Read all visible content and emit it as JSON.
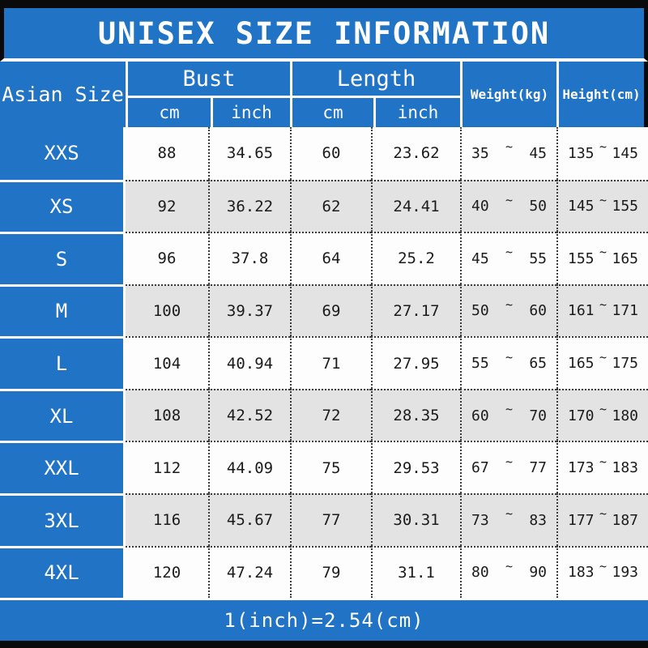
{
  "title": "UNISEX SIZE INFORMATION",
  "footer_note": "1(inch)=2.54(cm)",
  "tilde": "~",
  "colors": {
    "accent_blue": "#2173c5",
    "row_alt_gray": "#e3e3e3",
    "row_white": "#fdfdfd",
    "frame_black": "#0a0a0a"
  },
  "columns": {
    "size": "Asian Size",
    "bust": "Bust",
    "length": "Length",
    "weight": "Weight(kg)",
    "height": "Height(cm)",
    "cm": "cm",
    "inch": "inch"
  },
  "rows": [
    {
      "size": "XXS",
      "bust_cm": "88",
      "bust_in": "34.65",
      "length_cm": "60",
      "length_in": "23.62",
      "weight_min": "35",
      "weight_max": "45",
      "height_min": "135",
      "height_max": "145"
    },
    {
      "size": "XS",
      "bust_cm": "92",
      "bust_in": "36.22",
      "length_cm": "62",
      "length_in": "24.41",
      "weight_min": "40",
      "weight_max": "50",
      "height_min": "145",
      "height_max": "155"
    },
    {
      "size": "S",
      "bust_cm": "96",
      "bust_in": "37.8",
      "length_cm": "64",
      "length_in": "25.2",
      "weight_min": "45",
      "weight_max": "55",
      "height_min": "155",
      "height_max": "165"
    },
    {
      "size": "M",
      "bust_cm": "100",
      "bust_in": "39.37",
      "length_cm": "69",
      "length_in": "27.17",
      "weight_min": "50",
      "weight_max": "60",
      "height_min": "161",
      "height_max": "171"
    },
    {
      "size": "L",
      "bust_cm": "104",
      "bust_in": "40.94",
      "length_cm": "71",
      "length_in": "27.95",
      "weight_min": "55",
      "weight_max": "65",
      "height_min": "165",
      "height_max": "175"
    },
    {
      "size": "XL",
      "bust_cm": "108",
      "bust_in": "42.52",
      "length_cm": "72",
      "length_in": "28.35",
      "weight_min": "60",
      "weight_max": "70",
      "height_min": "170",
      "height_max": "180"
    },
    {
      "size": "XXL",
      "bust_cm": "112",
      "bust_in": "44.09",
      "length_cm": "75",
      "length_in": "29.53",
      "weight_min": "67",
      "weight_max": "77",
      "height_min": "173",
      "height_max": "183"
    },
    {
      "size": "3XL",
      "bust_cm": "116",
      "bust_in": "45.67",
      "length_cm": "77",
      "length_in": "30.31",
      "weight_min": "73",
      "weight_max": "83",
      "height_min": "177",
      "height_max": "187"
    },
    {
      "size": "4XL",
      "bust_cm": "120",
      "bust_in": "47.24",
      "length_cm": "79",
      "length_in": "31.1",
      "weight_min": "80",
      "weight_max": "90",
      "height_min": "183",
      "height_max": "193"
    }
  ]
}
